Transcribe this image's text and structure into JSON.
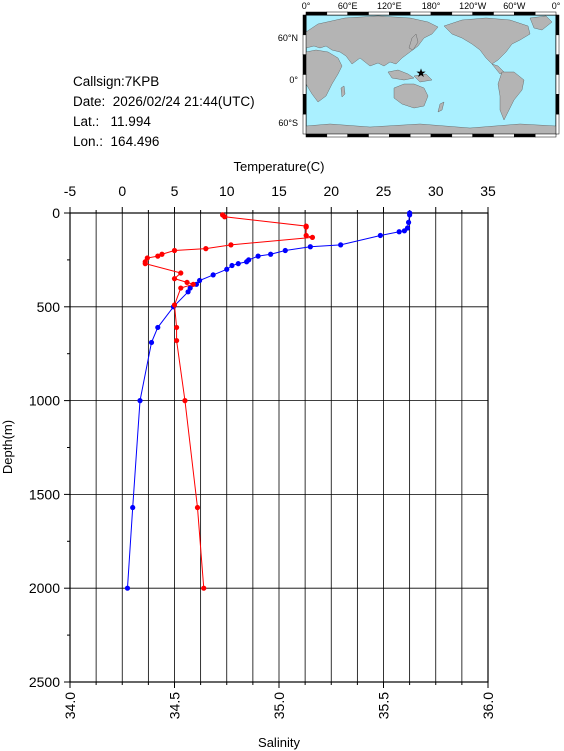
{
  "station": {
    "callsign_line": "Callsign:7KPB",
    "date_label": "Date:",
    "date_value": "2026/02/24 21:44(UTC)",
    "lat_label": "Lat.:",
    "lat_value": "11.994",
    "lon_label": "Lon.:",
    "lon_value": "164.496"
  },
  "map": {
    "top_lon_labels": [
      "0°",
      "60°E",
      "120°E",
      "180°",
      "120°W",
      "60°W",
      "0°"
    ],
    "lat_labels": [
      "60°N",
      "0°",
      "60°S"
    ],
    "marker": "red-star",
    "ocean_color": "#aaf0ff",
    "land_color": "#b4b4b4",
    "marker_color": "#ff0000"
  },
  "chart_data": {
    "type": "line",
    "title": "",
    "xlabel_top": "Temperature(C)",
    "xlabel_bottom": "Salinity",
    "ylabel": "Depth(m)",
    "temperature_range": [
      -5,
      35
    ],
    "salinity_range": [
      34.0,
      36.0
    ],
    "depth_range": [
      0,
      2500
    ],
    "y_inverted": true,
    "grid": true,
    "temperature_ticks": [
      "-5",
      "0",
      "5",
      "10",
      "15",
      "20",
      "25",
      "30",
      "35"
    ],
    "salinity_ticks": [
      "34.0",
      "34.5",
      "35.0",
      "35.5",
      "36.0"
    ],
    "depth_ticks": [
      "0",
      "500",
      "1000",
      "1500",
      "2000",
      "2500"
    ],
    "series": [
      {
        "axis": "temperature",
        "color": "#0000ff",
        "depth": [
          0,
          10,
          50,
          80,
          95,
          100,
          120,
          170,
          180,
          200,
          220,
          230,
          250,
          260,
          270,
          280,
          300,
          330,
          360,
          380,
          400,
          420,
          500,
          610,
          690,
          1000,
          1570,
          2000
        ],
        "values": [
          27.5,
          27.5,
          27.4,
          27.3,
          27.0,
          26.5,
          24.7,
          20.9,
          18.0,
          15.6,
          14.2,
          13.0,
          12.1,
          11.9,
          11.1,
          10.5,
          10.0,
          8.7,
          7.4,
          7.1,
          6.5,
          6.3,
          4.9,
          3.4,
          2.8,
          1.7,
          1.0,
          0.5
        ]
      },
      {
        "axis": "salinity",
        "color": "#ff0000",
        "depth": [
          10,
          20,
          70,
          75,
          120,
          130,
          170,
          190,
          200,
          220,
          230,
          240,
          260,
          270,
          320,
          350,
          370,
          380,
          400,
          490,
          610,
          680,
          1000,
          1570,
          2000
        ],
        "values": [
          34.73,
          34.74,
          35.13,
          35.13,
          35.13,
          35.16,
          34.77,
          34.65,
          34.5,
          34.44,
          34.42,
          34.37,
          34.36,
          34.36,
          34.53,
          34.5,
          34.56,
          34.59,
          34.53,
          34.5,
          34.51,
          34.51,
          34.55,
          34.61,
          34.64
        ]
      }
    ]
  }
}
